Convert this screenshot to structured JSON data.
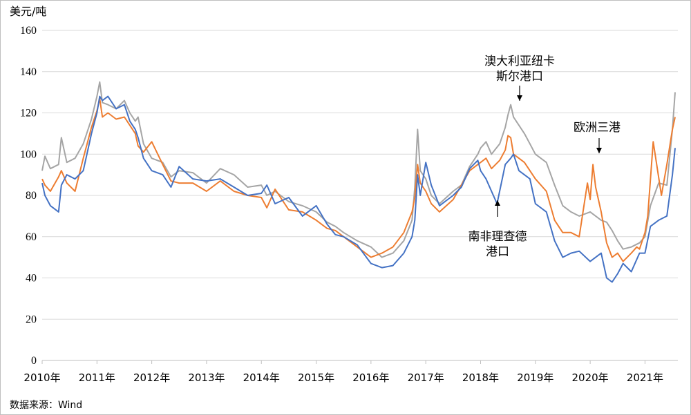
{
  "chart_data": {
    "type": "line",
    "ylabel": "美元/吨",
    "ylim": [
      0,
      160
    ],
    "yticks": [
      "0",
      "20",
      "40",
      "60",
      "80",
      "100",
      "120",
      "140",
      "160"
    ],
    "xlim": [
      2010.0,
      2021.6
    ],
    "categories": [
      "2010年",
      "2011年",
      "2012年",
      "2013年",
      "2014年",
      "2015年",
      "2016年",
      "2017年",
      "2018年",
      "2019年",
      "2020年",
      "2021年"
    ],
    "grid": true,
    "source": "数据来源：Wind",
    "annotations": [
      {
        "lines": [
          "澳大利亚纽卡",
          "斯尔港口"
        ],
        "target": [
          2018.58,
          121
        ]
      },
      {
        "lines": [
          "欧洲三港"
        ],
        "target": [
          2020.05,
          97
        ]
      },
      {
        "lines": [
          "南非理查德",
          "港口"
        ],
        "target": [
          2018.22,
          78
        ]
      }
    ],
    "series": [
      {
        "key": "newcastle",
        "color": "#a5a5a5",
        "x": [
          2010.0,
          2010.05,
          2010.15,
          2010.3,
          2010.35,
          2010.45,
          2010.6,
          2010.75,
          2010.9,
          2011.0,
          2011.05,
          2011.1,
          2011.2,
          2011.35,
          2011.5,
          2011.6,
          2011.7,
          2011.75,
          2011.85,
          2012.0,
          2012.2,
          2012.35,
          2012.5,
          2012.75,
          2013.0,
          2013.25,
          2013.5,
          2013.75,
          2014.0,
          2014.1,
          2014.25,
          2014.5,
          2014.75,
          2015.0,
          2015.2,
          2015.35,
          2015.5,
          2015.75,
          2016.0,
          2016.2,
          2016.4,
          2016.6,
          2016.75,
          2016.8,
          2016.85,
          2016.9,
          2017.0,
          2017.1,
          2017.25,
          2017.5,
          2017.65,
          2017.8,
          2017.95,
          2018.0,
          2018.1,
          2018.2,
          2018.35,
          2018.45,
          2018.5,
          2018.55,
          2018.6,
          2018.7,
          2018.8,
          2018.9,
          2019.0,
          2019.2,
          2019.35,
          2019.5,
          2019.65,
          2019.8,
          2020.0,
          2020.2,
          2020.3,
          2020.4,
          2020.5,
          2020.6,
          2020.75,
          2020.9,
          2021.0,
          2021.1,
          2021.25,
          2021.4,
          2021.5,
          2021.55
        ],
        "y": [
          92,
          99,
          93,
          95,
          108,
          96,
          98,
          105,
          117,
          128,
          135,
          125,
          124,
          122,
          126,
          120,
          116,
          118,
          105,
          98,
          96,
          89,
          92,
          91,
          86,
          93,
          90,
          84,
          85,
          80,
          82,
          77,
          75,
          72,
          67,
          65,
          62,
          58,
          55,
          50,
          52,
          58,
          68,
          84,
          112,
          92,
          88,
          80,
          76,
          82,
          85,
          94,
          100,
          103,
          106,
          100,
          105,
          113,
          119,
          124,
          118,
          114,
          110,
          105,
          100,
          96,
          85,
          75,
          72,
          70,
          72,
          68,
          67,
          63,
          58,
          54,
          55,
          57,
          60,
          75,
          86,
          85,
          112,
          130
        ]
      },
      {
        "key": "europe",
        "color": "#ed7d31",
        "x": [
          2010.0,
          2010.05,
          2010.15,
          2010.3,
          2010.35,
          2010.45,
          2010.6,
          2010.75,
          2010.9,
          2011.0,
          2011.05,
          2011.1,
          2011.2,
          2011.35,
          2011.5,
          2011.6,
          2011.7,
          2011.75,
          2011.85,
          2012.0,
          2012.2,
          2012.35,
          2012.5,
          2012.75,
          2013.0,
          2013.25,
          2013.5,
          2013.75,
          2014.0,
          2014.1,
          2014.25,
          2014.5,
          2014.75,
          2015.0,
          2015.2,
          2015.35,
          2015.5,
          2015.75,
          2016.0,
          2016.2,
          2016.4,
          2016.6,
          2016.75,
          2016.8,
          2016.85,
          2016.9,
          2017.0,
          2017.1,
          2017.25,
          2017.5,
          2017.65,
          2017.8,
          2017.95,
          2018.0,
          2018.1,
          2018.2,
          2018.35,
          2018.45,
          2018.5,
          2018.55,
          2018.6,
          2018.7,
          2018.8,
          2018.9,
          2019.0,
          2019.2,
          2019.35,
          2019.5,
          2019.65,
          2019.8,
          2019.95,
          2020.0,
          2020.05,
          2020.1,
          2020.2,
          2020.3,
          2020.4,
          2020.5,
          2020.6,
          2020.75,
          2020.85,
          2020.9,
          2021.0,
          2021.05,
          2021.15,
          2021.3,
          2021.4,
          2021.5,
          2021.55
        ],
        "y": [
          88,
          85,
          82,
          89,
          92,
          86,
          82,
          98,
          113,
          121,
          127,
          118,
          120,
          117,
          118,
          114,
          110,
          104,
          101,
          106,
          95,
          87,
          86,
          86,
          82,
          87,
          82,
          80,
          79,
          74,
          83,
          73,
          72,
          68,
          64,
          63,
          60,
          55,
          50,
          52,
          55,
          62,
          72,
          79,
          95,
          86,
          82,
          76,
          72,
          78,
          85,
          92,
          95,
          96,
          98,
          93,
          97,
          102,
          109,
          108,
          100,
          98,
          96,
          92,
          88,
          82,
          68,
          62,
          62,
          60,
          86,
          78,
          95,
          84,
          72,
          57,
          50,
          52,
          48,
          52,
          55,
          54,
          62,
          70,
          106,
          80,
          95,
          112,
          118
        ]
      },
      {
        "key": "richards_bay",
        "color": "#4472c4",
        "x": [
          2010.0,
          2010.05,
          2010.15,
          2010.3,
          2010.35,
          2010.45,
          2010.6,
          2010.75,
          2010.9,
          2011.0,
          2011.05,
          2011.1,
          2011.2,
          2011.35,
          2011.5,
          2011.6,
          2011.7,
          2011.75,
          2011.85,
          2012.0,
          2012.2,
          2012.35,
          2012.5,
          2012.75,
          2013.0,
          2013.25,
          2013.5,
          2013.75,
          2014.0,
          2014.1,
          2014.25,
          2014.5,
          2014.75,
          2015.0,
          2015.2,
          2015.35,
          2015.5,
          2015.75,
          2016.0,
          2016.2,
          2016.4,
          2016.6,
          2016.75,
          2016.8,
          2016.85,
          2016.9,
          2017.0,
          2017.1,
          2017.25,
          2017.5,
          2017.65,
          2017.8,
          2017.95,
          2018.0,
          2018.1,
          2018.2,
          2018.3,
          2018.45,
          2018.55,
          2018.6,
          2018.7,
          2018.8,
          2018.9,
          2019.0,
          2019.2,
          2019.35,
          2019.5,
          2019.65,
          2019.8,
          2020.0,
          2020.2,
          2020.3,
          2020.4,
          2020.5,
          2020.6,
          2020.75,
          2020.9,
          2021.0,
          2021.1,
          2021.25,
          2021.4,
          2021.5,
          2021.55
        ],
        "y": [
          86,
          80,
          75,
          72,
          85,
          90,
          88,
          92,
          110,
          120,
          128,
          126,
          128,
          122,
          124,
          116,
          112,
          108,
          98,
          92,
          90,
          84,
          94,
          88,
          87,
          88,
          84,
          80,
          81,
          85,
          76,
          79,
          70,
          75,
          66,
          61,
          60,
          56,
          47,
          45,
          46,
          52,
          60,
          68,
          90,
          80,
          96,
          85,
          75,
          80,
          84,
          93,
          97,
          92,
          88,
          82,
          76,
          95,
          98,
          100,
          92,
          90,
          88,
          76,
          72,
          58,
          50,
          52,
          53,
          48,
          52,
          40,
          38,
          42,
          47,
          43,
          52,
          52,
          65,
          68,
          70,
          90,
          103
        ]
      }
    ]
  }
}
